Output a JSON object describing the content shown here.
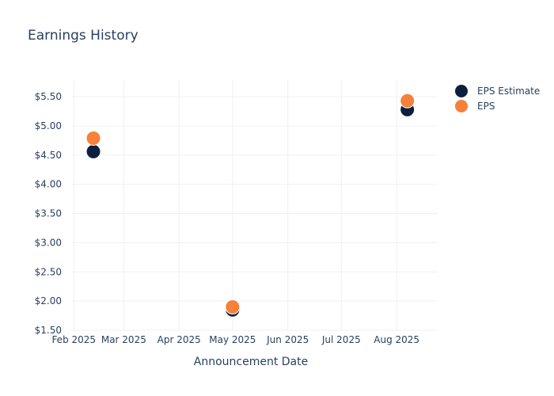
{
  "chart_data": {
    "type": "scatter",
    "title": "Earnings History",
    "xlabel": "Announcement Date",
    "ylabel": "",
    "x_ticks": [
      "Feb 2025",
      "Mar 2025",
      "Apr 2025",
      "May 2025",
      "Jun 2025",
      "Jul 2025",
      "Aug 2025"
    ],
    "y_ticks": [
      "$1.50",
      "$2.00",
      "$2.50",
      "$3.00",
      "$3.50",
      "$4.00",
      "$4.50",
      "$5.00",
      "$5.50"
    ],
    "xlim": [
      "2025-01-31",
      "2025-08-24"
    ],
    "ylim": [
      1.5,
      5.8
    ],
    "grid": true,
    "legend_position": "top-right",
    "series": [
      {
        "name": "EPS Estimate",
        "color": "#0c1f3f",
        "points": [
          {
            "x": "2025-02-12",
            "y": 4.56
          },
          {
            "x": "2025-05-01",
            "y": 1.85
          },
          {
            "x": "2025-08-07",
            "y": 5.28
          }
        ]
      },
      {
        "name": "EPS",
        "color": "#f5813a",
        "points": [
          {
            "x": "2025-02-12",
            "y": 4.79
          },
          {
            "x": "2025-05-01",
            "y": 1.9
          },
          {
            "x": "2025-08-07",
            "y": 5.43
          }
        ]
      }
    ]
  }
}
